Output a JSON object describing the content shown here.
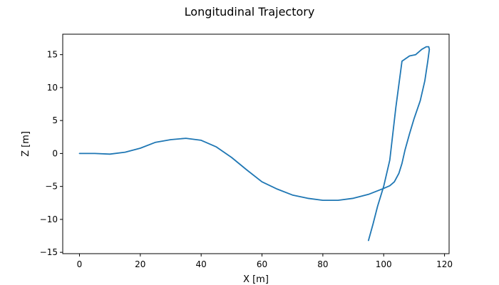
{
  "chart_data": {
    "type": "line",
    "title": "Longitudinal Trajectory",
    "xlabel": "X [m]",
    "ylabel": "Z [m]",
    "xlim": [
      -5.5,
      121.5
    ],
    "ylim": [
      -15.2,
      18.1
    ],
    "xticks": [
      0,
      20,
      40,
      60,
      80,
      100,
      120
    ],
    "yticks": [
      -15,
      -10,
      -5,
      0,
      5,
      10,
      15
    ],
    "grid": false,
    "series": [
      {
        "color": "#1f77b4",
        "x": [
          0,
          5,
          10,
          15,
          20,
          25,
          30,
          35,
          40,
          45,
          50,
          55,
          60,
          65,
          70,
          75,
          80,
          85,
          90,
          95,
          100,
          102,
          103.5,
          105,
          106,
          107,
          108.5,
          110,
          112,
          113.5,
          114.5,
          115,
          114.8,
          114,
          112.5,
          110.5,
          108.5,
          106,
          104,
          102,
          100,
          98,
          96.5,
          95
        ],
        "y": [
          0,
          0,
          -0.1,
          0.2,
          0.8,
          1.7,
          2.1,
          2.3,
          2.0,
          1.0,
          -0.6,
          -2.5,
          -4.3,
          -5.4,
          -6.3,
          -6.8,
          -7.1,
          -7.1,
          -6.8,
          -6.2,
          -5.3,
          -4.9,
          -4.3,
          -3.0,
          -1.5,
          0.5,
          3.0,
          5.3,
          8.0,
          11.0,
          14.0,
          15.8,
          16.2,
          16.2,
          15.8,
          15.0,
          14.8,
          14.0,
          7.0,
          -1.0,
          -5.0,
          -8.0,
          -10.7,
          -13.2
        ]
      }
    ]
  }
}
